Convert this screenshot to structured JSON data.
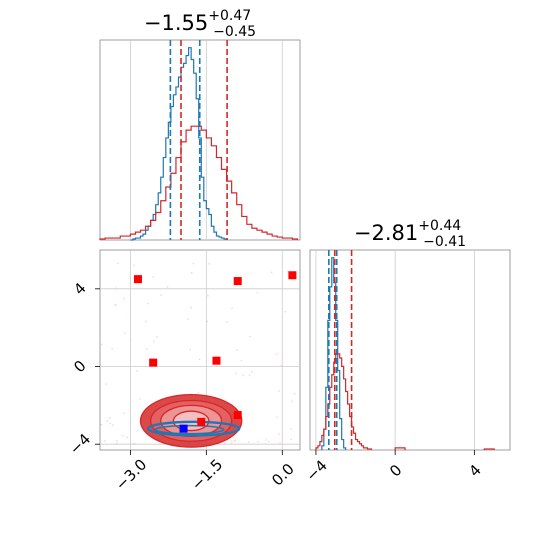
{
  "chart_data": [
    {
      "panel": "top-left",
      "type": "histogram",
      "title": {
        "main": "−1.55",
        "sup": "+0.47",
        "sub": "−0.45"
      },
      "xlim": [
        -3.6,
        0.35
      ],
      "grid": true,
      "series": [
        {
          "name": "",
          "color": "#1f77b4",
          "quantiles": [
            -2.21,
            -1.63
          ],
          "bin_edges": [
            -3.0,
            -2.95,
            -2.9,
            -2.85,
            -2.8,
            -2.75,
            -2.7,
            -2.65,
            -2.6,
            -2.55,
            -2.5,
            -2.45,
            -2.4,
            -2.35,
            -2.3,
            -2.25,
            -2.2,
            -2.15,
            -2.1,
            -2.05,
            -2.0,
            -1.95,
            -1.9,
            -1.85,
            -1.8,
            -1.75,
            -1.7,
            -1.65,
            -1.6,
            -1.55,
            -1.5,
            -1.45,
            -1.4,
            -1.35,
            -1.3,
            -1.25,
            -1.2,
            -1.15,
            -1.1
          ],
          "counts": [
            0,
            0.005,
            0.01,
            0.01,
            0.02,
            0.03,
            0.05,
            0.07,
            0.1,
            0.13,
            0.18,
            0.24,
            0.32,
            0.42,
            0.52,
            0.6,
            0.68,
            0.74,
            0.78,
            0.83,
            0.88,
            0.9,
            0.94,
            0.98,
            0.92,
            0.85,
            0.72,
            0.52,
            0.32,
            0.2,
            0.16,
            0.13,
            0.07,
            0.04,
            0.02,
            0.015,
            0.01,
            0.005
          ]
        },
        {
          "name": "",
          "color": "#d62728",
          "quantiles": [
            -2.0,
            -1.09
          ],
          "bin_edges": [
            -3.6,
            -3.5,
            -3.4,
            -3.3,
            -3.2,
            -3.1,
            -3.0,
            -2.9,
            -2.8,
            -2.7,
            -2.6,
            -2.5,
            -2.4,
            -2.3,
            -2.2,
            -2.1,
            -2.0,
            -1.9,
            -1.8,
            -1.7,
            -1.6,
            -1.5,
            -1.4,
            -1.3,
            -1.2,
            -1.1,
            -1.0,
            -0.9,
            -0.8,
            -0.7,
            -0.6,
            -0.5,
            -0.4,
            -0.3,
            -0.2,
            -0.1,
            0.0,
            0.1,
            0.2,
            0.3
          ],
          "counts": [
            0.005,
            0.01,
            0.01,
            0.01,
            0.02,
            0.02,
            0.03,
            0.04,
            0.05,
            0.07,
            0.1,
            0.14,
            0.2,
            0.27,
            0.34,
            0.42,
            0.5,
            0.56,
            0.58,
            0.58,
            0.56,
            0.52,
            0.48,
            0.42,
            0.36,
            0.3,
            0.24,
            0.18,
            0.12,
            0.08,
            0.06,
            0.05,
            0.04,
            0.03,
            0.02,
            0.015,
            0.01,
            0.01,
            0.005
          ]
        }
      ]
    },
    {
      "panel": "bottom-right",
      "type": "histogram",
      "title": {
        "main": "−2.81",
        "sup": "+0.44",
        "sub": "−0.41"
      },
      "xlim": [
        -4.3,
        5.8
      ],
      "xticks": [
        -4,
        0,
        4
      ],
      "xtick_labels": [
        "−4",
        "0",
        "4"
      ],
      "grid": true,
      "series": [
        {
          "name": "",
          "color": "#1f77b4",
          "quantiles": [
            -3.35,
            -2.95
          ],
          "bin_edges": [
            -3.7,
            -3.6,
            -3.5,
            -3.4,
            -3.3,
            -3.2,
            -3.1,
            -3.0,
            -2.9,
            -2.8,
            -2.7,
            -2.6,
            -2.5
          ],
          "counts": [
            0.02,
            0.1,
            0.3,
            0.62,
            0.78,
            0.92,
            0.8,
            0.62,
            0.38,
            0.15,
            0.05,
            0.01
          ]
        },
        {
          "name": "",
          "color": "#d62728",
          "quantiles": [
            -3.05,
            -2.2
          ],
          "bin_edges": [
            -4.0,
            -3.9,
            -3.8,
            -3.7,
            -3.6,
            -3.5,
            -3.4,
            -3.3,
            -3.2,
            -3.1,
            -3.0,
            -2.9,
            -2.8,
            -2.7,
            -2.6,
            -2.5,
            -2.4,
            -2.3,
            -2.2,
            -2.1,
            -2.0,
            -1.9,
            -1.8,
            -1.7,
            -1.6,
            -1.5,
            -1.4,
            -1.3,
            -1.2
          ],
          "counts": [
            0.01,
            0.02,
            0.04,
            0.07,
            0.1,
            0.16,
            0.22,
            0.3,
            0.36,
            0.42,
            0.46,
            0.46,
            0.44,
            0.4,
            0.34,
            0.28,
            0.22,
            0.16,
            0.11,
            0.08,
            0.05,
            0.04,
            0.03,
            0.02,
            0.01,
            0.01,
            0.005,
            0.005
          ],
          "outlier_bins": [
            {
              "x0": 0.0,
              "x1": 0.5,
              "count": 0.01
            },
            {
              "x0": 4.5,
              "x1": 5.0,
              "count": 0.005
            }
          ]
        }
      ]
    },
    {
      "panel": "bottom-left",
      "type": "scatter",
      "xlim": [
        -3.6,
        0.35
      ],
      "ylim": [
        -4.3,
        6.0
      ],
      "xticks": [
        -3.0,
        -1.5,
        0.0
      ],
      "xtick_labels": [
        "−3.0",
        "−1.5",
        "0.0"
      ],
      "yticks": [
        -4,
        0,
        4
      ],
      "ytick_labels": [
        "−4",
        "0",
        "4"
      ],
      "grid": true,
      "red_contour": {
        "color": "#d62728",
        "center": [
          -1.8,
          -2.8
        ],
        "radii_x": [
          0.35,
          0.6,
          0.8,
          1.0
        ],
        "radii_y": [
          0.5,
          0.8,
          1.05,
          1.35
        ]
      },
      "blue_contour": {
        "color": "#1f77b4",
        "center": [
          -1.75,
          -3.2
        ],
        "radii_x": [
          0.9
        ],
        "radii_y": [
          0.35
        ]
      },
      "red_points": [
        {
          "x": -2.85,
          "y": 4.5
        },
        {
          "x": -0.88,
          "y": 4.4
        },
        {
          "x": 0.2,
          "y": 4.7
        },
        {
          "x": -2.55,
          "y": 0.2
        },
        {
          "x": -1.3,
          "y": 0.3
        },
        {
          "x": -0.88,
          "y": -2.5
        },
        {
          "x": -1.6,
          "y": -2.85
        }
      ],
      "blue_points": [
        {
          "x": -1.95,
          "y": -3.2
        }
      ]
    }
  ]
}
